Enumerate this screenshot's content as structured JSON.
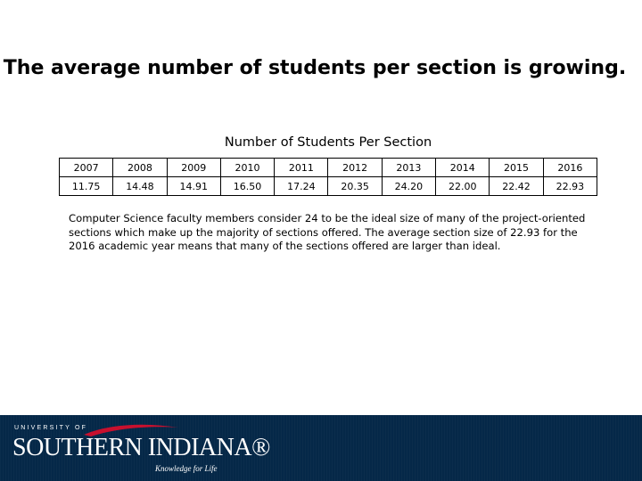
{
  "slide": {
    "title": "The average number of students per section is growing.",
    "table_caption": "Number of Students Per Section",
    "note": "Computer Science faculty members consider 24 to be the ideal size of many of the project-oriented sections which make up the majority of sections offered.  The average section size of 22.93 for the 2016 academic year means that many of the sections offered are larger than ideal."
  },
  "table": {
    "years": [
      "2007",
      "2008",
      "2009",
      "2010",
      "2011",
      "2012",
      "2013",
      "2014",
      "2015",
      "2016"
    ],
    "values": [
      "11.75",
      "14.48",
      "14.91",
      "16.50",
      "17.24",
      "20.35",
      "24.20",
      "22.00",
      "22.42",
      "22.93"
    ]
  },
  "footer": {
    "logo_top": "UNIVERSITY OF",
    "logo_name": "SOUTHERN INDIANA®",
    "logo_tagline": "Knowledge for Life",
    "background_color": "#052848",
    "accent_color": "#c8102e"
  }
}
